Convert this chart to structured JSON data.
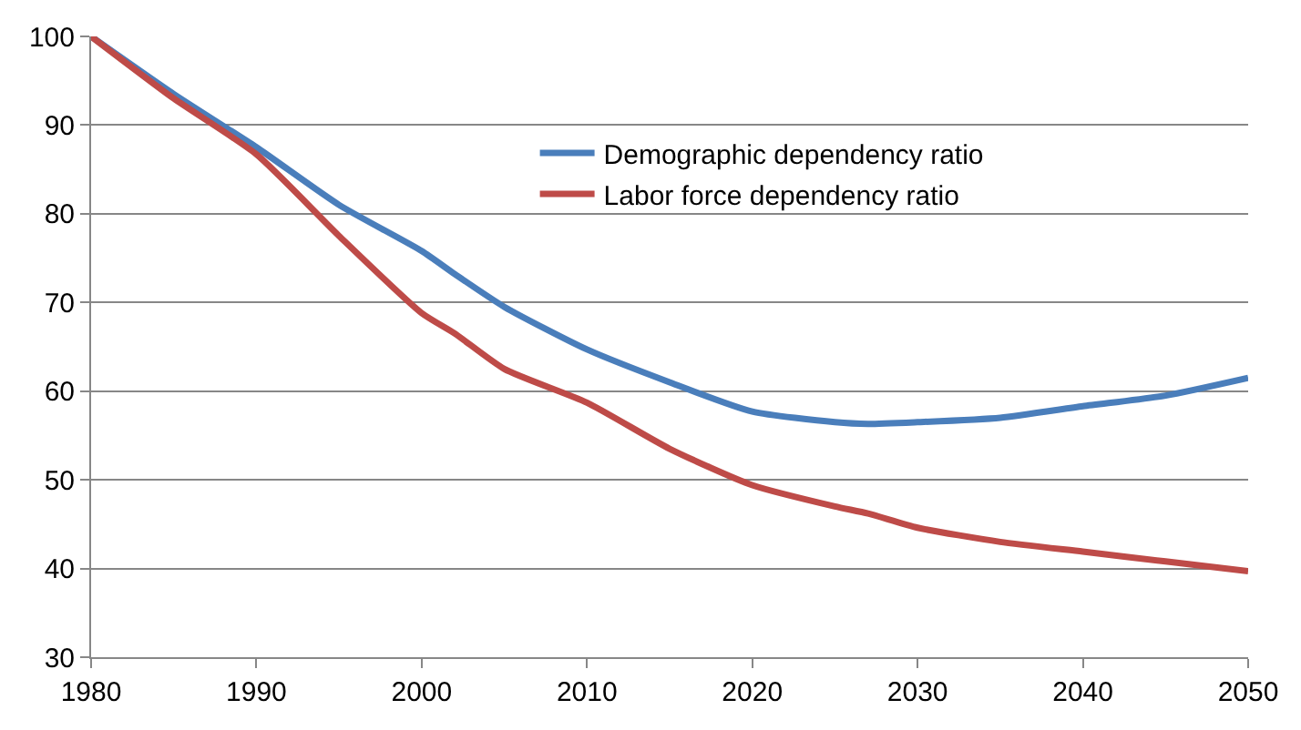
{
  "chart_data": {
    "type": "line",
    "x": [
      1980,
      1985,
      1990,
      1995,
      2000,
      2002,
      2005,
      2010,
      2015,
      2020,
      2025,
      2027,
      2030,
      2035,
      2040,
      2045,
      2050
    ],
    "series": [
      {
        "name": "Demographic dependency ratio",
        "color": "#4a7ebb",
        "values": [
          100,
          93.5,
          87.5,
          81,
          75.8,
          73.2,
          69.5,
          64.7,
          61,
          57.7,
          56.5,
          56.3,
          56.5,
          57,
          58.3,
          59.5,
          61.5
        ]
      },
      {
        "name": "Labor force dependency ratio",
        "color": "#be4b48",
        "values": [
          100,
          93,
          86.7,
          77.5,
          68.8,
          66.5,
          62.5,
          58.7,
          53.5,
          49.4,
          47,
          46.2,
          44.6,
          43,
          41.9,
          40.8,
          39.7
        ]
      }
    ],
    "xlim": [
      1980,
      2050
    ],
    "xticks": [
      1980,
      1990,
      2000,
      2010,
      2020,
      2030,
      2040,
      2050
    ],
    "ylim": [
      30,
      100
    ],
    "yticks": [
      30,
      40,
      50,
      60,
      70,
      80,
      90,
      100
    ],
    "grid": "y",
    "legend": "top right",
    "marker": "none",
    "line_style": "solid"
  }
}
